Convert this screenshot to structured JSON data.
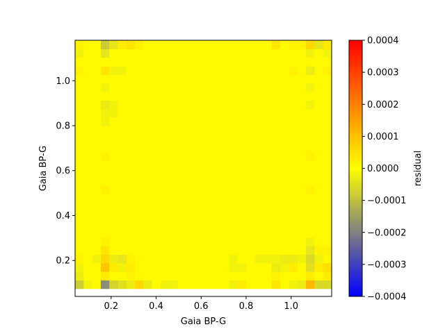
{
  "chart_data": {
    "type": "heatmap",
    "xlabel": "Gaia BP-G",
    "ylabel": "Gaia BP-G",
    "xlim": [
      0.04,
      1.18
    ],
    "ylim": [
      0.04,
      1.18
    ],
    "data_extent": [
      0.04,
      1.18,
      0.075,
      1.18
    ],
    "xticks": [
      {
        "value": 0.2,
        "label": "0.2"
      },
      {
        "value": 0.4,
        "label": "0.4"
      },
      {
        "value": 0.6,
        "label": "0.6"
      },
      {
        "value": 0.8,
        "label": "0.8"
      },
      {
        "value": 1.0,
        "label": "1.0"
      }
    ],
    "yticks": [
      {
        "value": 0.2,
        "label": "0.2"
      },
      {
        "value": 0.4,
        "label": "0.4"
      },
      {
        "value": 0.6,
        "label": "0.6"
      },
      {
        "value": 0.8,
        "label": "0.8"
      },
      {
        "value": 1.0,
        "label": "1.0"
      }
    ],
    "grid": {
      "cols": 30,
      "rows": 29,
      "base_value": 1e-05,
      "cells": [
        {
          "col": 1,
          "row": 0,
          "value": -2e-05
        },
        {
          "col": 0,
          "row": 0,
          "value": -8e-05
        },
        {
          "col": 3,
          "row": 0,
          "value": -0.00018
        },
        {
          "col": 4,
          "row": 0,
          "value": -7e-05
        },
        {
          "col": 5,
          "row": 0,
          "value": -5e-05
        },
        {
          "col": 6,
          "row": 0,
          "value": -3e-05
        },
        {
          "col": 7,
          "row": 0,
          "value": 6e-05
        },
        {
          "col": 8,
          "row": 0,
          "value": -3e-05
        },
        {
          "col": 10,
          "row": 0,
          "value": -2e-05
        },
        {
          "col": 11,
          "row": 0,
          "value": -2e-05
        },
        {
          "col": 18,
          "row": 0,
          "value": -2e-05
        },
        {
          "col": 19,
          "row": 0,
          "value": 3e-05
        },
        {
          "col": 23,
          "row": 0,
          "value": 4e-05
        },
        {
          "col": 25,
          "row": 0,
          "value": -2e-05
        },
        {
          "col": 26,
          "row": 0,
          "value": -3e-05
        },
        {
          "col": 27,
          "row": 0,
          "value": 0.00011
        },
        {
          "col": 28,
          "row": 0,
          "value": -6e-05
        },
        {
          "col": 29,
          "row": 0,
          "value": -6e-05
        },
        {
          "col": 0,
          "row": 1,
          "value": -3e-05
        },
        {
          "col": 3,
          "row": 1,
          "value": 3e-05
        },
        {
          "col": 6,
          "row": 1,
          "value": 2e-05
        },
        {
          "col": 23,
          "row": 1,
          "value": 2e-05
        },
        {
          "col": 27,
          "row": 1,
          "value": 3e-05
        },
        {
          "col": 29,
          "row": 1,
          "value": 3e-05
        },
        {
          "col": 0,
          "row": 2,
          "value": -2e-05
        },
        {
          "col": 3,
          "row": 2,
          "value": 9e-05
        },
        {
          "col": 4,
          "row": 2,
          "value": 3e-05
        },
        {
          "col": 5,
          "row": 2,
          "value": -2e-05
        },
        {
          "col": 6,
          "row": 2,
          "value": 3e-05
        },
        {
          "col": 18,
          "row": 2,
          "value": -2e-05
        },
        {
          "col": 19,
          "row": 2,
          "value": -2e-05
        },
        {
          "col": 23,
          "row": 2,
          "value": -3e-05
        },
        {
          "col": 24,
          "row": 2,
          "value": -2e-05
        },
        {
          "col": 25,
          "row": 2,
          "value": 3e-05
        },
        {
          "col": 27,
          "row": 2,
          "value": -5e-05
        },
        {
          "col": 28,
          "row": 2,
          "value": 3e-05
        },
        {
          "col": 29,
          "row": 2,
          "value": 5e-05
        },
        {
          "col": 0,
          "row": 3,
          "value": 2e-05
        },
        {
          "col": 2,
          "row": 3,
          "value": -2e-05
        },
        {
          "col": 3,
          "row": 3,
          "value": 6e-05
        },
        {
          "col": 4,
          "row": 3,
          "value": -3e-05
        },
        {
          "col": 5,
          "row": 3,
          "value": -4e-05
        },
        {
          "col": 6,
          "row": 3,
          "value": 2e-05
        },
        {
          "col": 18,
          "row": 3,
          "value": -2e-05
        },
        {
          "col": 21,
          "row": 3,
          "value": -2e-05
        },
        {
          "col": 22,
          "row": 3,
          "value": -2e-05
        },
        {
          "col": 23,
          "row": 3,
          "value": -2e-05
        },
        {
          "col": 24,
          "row": 3,
          "value": -3e-05
        },
        {
          "col": 25,
          "row": 3,
          "value": -3e-05
        },
        {
          "col": 26,
          "row": 3,
          "value": -2e-05
        },
        {
          "col": 27,
          "row": 3,
          "value": -6e-05
        },
        {
          "col": 28,
          "row": 3,
          "value": -2e-05
        },
        {
          "col": 3,
          "row": 4,
          "value": 4e-05
        },
        {
          "col": 27,
          "row": 4,
          "value": -4e-05
        },
        {
          "col": 28,
          "row": 4,
          "value": 2e-05
        },
        {
          "col": 29,
          "row": 4,
          "value": 2e-05
        },
        {
          "col": 3,
          "row": 5,
          "value": 2e-05
        },
        {
          "col": 27,
          "row": 5,
          "value": -2e-05
        },
        {
          "col": 3,
          "row": 11,
          "value": 2e-05
        },
        {
          "col": 27,
          "row": 11,
          "value": 2e-05
        },
        {
          "col": 3,
          "row": 15,
          "value": 2e-05
        },
        {
          "col": 27,
          "row": 15,
          "value": 2e-05
        },
        {
          "col": 3,
          "row": 19,
          "value": -2e-05
        },
        {
          "col": 3,
          "row": 20,
          "value": -2e-05
        },
        {
          "col": 4,
          "row": 20,
          "value": -2e-05
        },
        {
          "col": 3,
          "row": 21,
          "value": -3e-05
        },
        {
          "col": 4,
          "row": 21,
          "value": -2e-05
        },
        {
          "col": 27,
          "row": 21,
          "value": -2e-05
        },
        {
          "col": 3,
          "row": 23,
          "value": -2e-05
        },
        {
          "col": 27,
          "row": 23,
          "value": -2e-05
        },
        {
          "col": 0,
          "row": 25,
          "value": 2e-05
        },
        {
          "col": 3,
          "row": 25,
          "value": 4e-05
        },
        {
          "col": 4,
          "row": 25,
          "value": -2e-05
        },
        {
          "col": 5,
          "row": 25,
          "value": -2e-05
        },
        {
          "col": 25,
          "row": 25,
          "value": 2e-05
        },
        {
          "col": 27,
          "row": 25,
          "value": -3e-05
        },
        {
          "col": 29,
          "row": 25,
          "value": 2e-05
        },
        {
          "col": 0,
          "row": 27,
          "value": -2e-05
        },
        {
          "col": 3,
          "row": 27,
          "value": -4e-05
        },
        {
          "col": 27,
          "row": 27,
          "value": -2e-05
        },
        {
          "col": 29,
          "row": 27,
          "value": -2e-05
        },
        {
          "col": 0,
          "row": 28,
          "value": 2e-05
        },
        {
          "col": 3,
          "row": 28,
          "value": -8e-05
        },
        {
          "col": 4,
          "row": 28,
          "value": -4e-05
        },
        {
          "col": 5,
          "row": 28,
          "value": 3e-05
        },
        {
          "col": 6,
          "row": 28,
          "value": 4e-05
        },
        {
          "col": 7,
          "row": 28,
          "value": 2e-05
        },
        {
          "col": 23,
          "row": 28,
          "value": 4e-05
        },
        {
          "col": 25,
          "row": 28,
          "value": 2e-05
        },
        {
          "col": 26,
          "row": 28,
          "value": 2e-05
        },
        {
          "col": 27,
          "row": 28,
          "value": 6e-05
        },
        {
          "col": 28,
          "row": 28,
          "value": -4e-05
        },
        {
          "col": 29,
          "row": 28,
          "value": 3e-05
        }
      ]
    },
    "colorbar": {
      "label": "residual",
      "vmin": -0.0004,
      "vmax": 0.0004,
      "stops": [
        {
          "value": -0.0004,
          "color": "#0000ff"
        },
        {
          "value": -0.0002,
          "color": "#808080"
        },
        {
          "value": 0.0,
          "color": "#ffff00"
        },
        {
          "value": 0.0002,
          "color": "#ff8000"
        },
        {
          "value": 0.0004,
          "color": "#ff0000"
        }
      ],
      "ticks": [
        {
          "value": -0.0004,
          "label": "−0.0004"
        },
        {
          "value": -0.0003,
          "label": "−0.0003"
        },
        {
          "value": -0.0002,
          "label": "−0.0002"
        },
        {
          "value": -0.0001,
          "label": "−0.0001"
        },
        {
          "value": 0.0,
          "label": "0.0000"
        },
        {
          "value": 0.0001,
          "label": "0.0001"
        },
        {
          "value": 0.0002,
          "label": "0.0002"
        },
        {
          "value": 0.0003,
          "label": "0.0003"
        },
        {
          "value": 0.0004,
          "label": "0.0004"
        }
      ]
    }
  }
}
